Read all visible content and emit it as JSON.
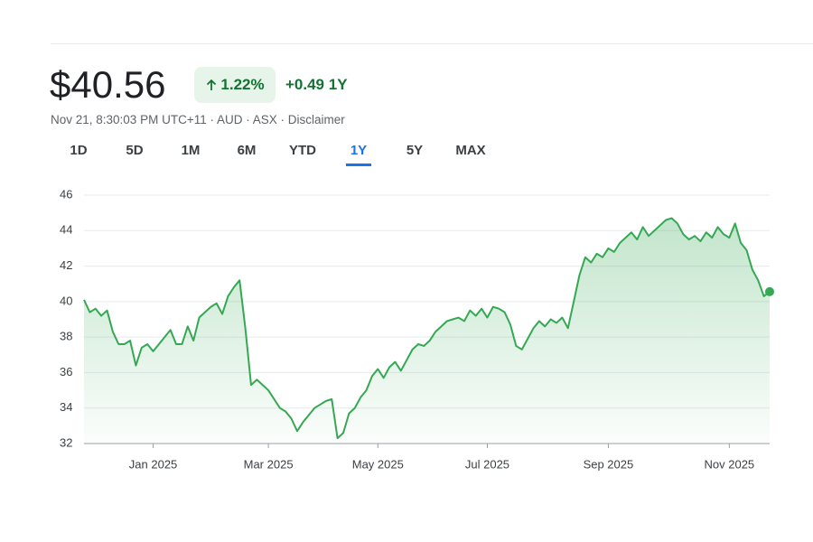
{
  "header": {
    "price": "$40.56",
    "change_percent": "1.22%",
    "change": "+0.49 1Y",
    "info": "Nov 21, 8:30:03 PM UTC+11 · AUD · ASX · Disclaimer",
    "ranges": [
      "1D",
      "5D",
      "1M",
      "6M",
      "YTD",
      "1Y",
      "5Y",
      "MAX"
    ],
    "selected_range": 5
  },
  "chart_data": {
    "type": "line",
    "color": "#34a853",
    "grid": true,
    "categories": [
      null,
      null,
      null,
      null,
      null,
      null,
      null,
      null,
      null,
      null,
      null,
      null,
      "Jan 2025",
      null,
      null,
      null,
      null,
      null,
      null,
      null,
      null,
      null,
      null,
      null,
      null,
      null,
      null,
      null,
      null,
      null,
      null,
      null,
      "Mar 2025",
      null,
      null,
      null,
      null,
      null,
      null,
      null,
      null,
      null,
      null,
      null,
      null,
      null,
      null,
      null,
      null,
      null,
      null,
      "May 2025",
      null,
      null,
      null,
      null,
      null,
      null,
      null,
      null,
      null,
      null,
      null,
      null,
      null,
      null,
      null,
      null,
      null,
      null,
      "Jul 2025",
      null,
      null,
      null,
      null,
      null,
      null,
      null,
      null,
      null,
      null,
      null,
      null,
      null,
      null,
      null,
      null,
      null,
      null,
      null,
      null,
      "Sep 2025",
      null,
      null,
      null,
      null,
      null,
      null,
      null,
      null,
      null,
      null,
      null,
      null,
      null,
      null,
      null,
      null,
      null,
      null,
      null,
      null,
      "Nov 2025",
      null,
      null,
      null,
      null,
      null,
      null,
      null
    ],
    "values": [
      40.1,
      39.4,
      39.6,
      39.2,
      39.5,
      38.3,
      37.6,
      37.6,
      37.8,
      36.4,
      37.4,
      37.6,
      37.2,
      37.6,
      38.0,
      38.4,
      37.6,
      37.6,
      38.6,
      37.8,
      39.1,
      39.4,
      39.7,
      39.9,
      39.3,
      40.3,
      40.8,
      41.2,
      38.5,
      35.3,
      35.6,
      35.3,
      35.0,
      34.5,
      34.0,
      33.8,
      33.4,
      32.7,
      33.2,
      33.6,
      34.0,
      34.2,
      34.4,
      34.5,
      32.3,
      32.6,
      33.7,
      34.0,
      34.6,
      35.0,
      35.8,
      36.2,
      35.7,
      36.3,
      36.6,
      36.1,
      36.7,
      37.3,
      37.6,
      37.5,
      37.8,
      38.3,
      38.6,
      38.9,
      39.0,
      39.1,
      38.9,
      39.5,
      39.2,
      39.6,
      39.1,
      39.7,
      39.6,
      39.4,
      38.7,
      37.5,
      37.3,
      37.9,
      38.5,
      38.9,
      38.6,
      39.0,
      38.8,
      39.1,
      38.5,
      40.0,
      41.5,
      42.5,
      42.2,
      42.7,
      42.5,
      43.0,
      42.8,
      43.3,
      43.6,
      43.9,
      43.5,
      44.2,
      43.7,
      44.0,
      44.3,
      44.6,
      44.7,
      44.4,
      43.8,
      43.5,
      43.7,
      43.4,
      43.9,
      43.6,
      44.2,
      43.8,
      43.6,
      44.4,
      43.3,
      42.9,
      41.8,
      41.2,
      40.3,
      40.56
    ],
    "ylim": [
      32,
      46
    ],
    "yticks": [
      32,
      34,
      36,
      38,
      40,
      42,
      44,
      46
    ]
  }
}
